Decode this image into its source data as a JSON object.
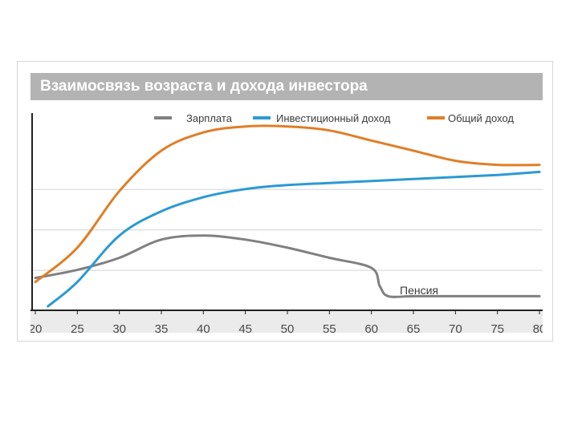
{
  "chart_data": {
    "type": "line",
    "title": "Взаимосвязь возраста и дохода инвестора",
    "xlabel": "",
    "ylabel": "",
    "x_ticks": [
      "20",
      "25",
      "30",
      "35",
      "40",
      "45",
      "50",
      "55",
      "60",
      "65",
      "70",
      "75",
      "80"
    ],
    "xlim": [
      20,
      80
    ],
    "ylim": [
      0,
      100
    ],
    "grid": "horizontal",
    "legend_position": "top-right",
    "annotation": "Пенсия",
    "series": [
      {
        "name": "Зарплата",
        "color": "#808080",
        "x": [
          20,
          25,
          30,
          35,
          40,
          45,
          50,
          55,
          60,
          61,
          62,
          65,
          70,
          75,
          80
        ],
        "values": [
          16,
          20,
          26,
          35,
          37,
          35,
          31,
          26,
          21,
          12,
          7,
          7,
          7,
          7,
          7
        ]
      },
      {
        "name": "Инвестиционный доход",
        "color": "#2b9ad3",
        "x": [
          21.5,
          25,
          30,
          35,
          40,
          45,
          50,
          55,
          60,
          65,
          70,
          75,
          80
        ],
        "values": [
          2,
          14,
          37,
          49,
          56,
          60,
          62,
          63,
          64,
          65,
          66,
          67,
          68.5
        ]
      },
      {
        "name": "Общий доход",
        "color": "#e07e26",
        "x": [
          20,
          25,
          30,
          35,
          40,
          45,
          50,
          55,
          60,
          65,
          70,
          75,
          80
        ],
        "values": [
          14,
          31,
          59,
          79,
          88,
          91,
          91,
          89,
          84,
          79,
          74,
          72,
          72
        ]
      }
    ]
  }
}
